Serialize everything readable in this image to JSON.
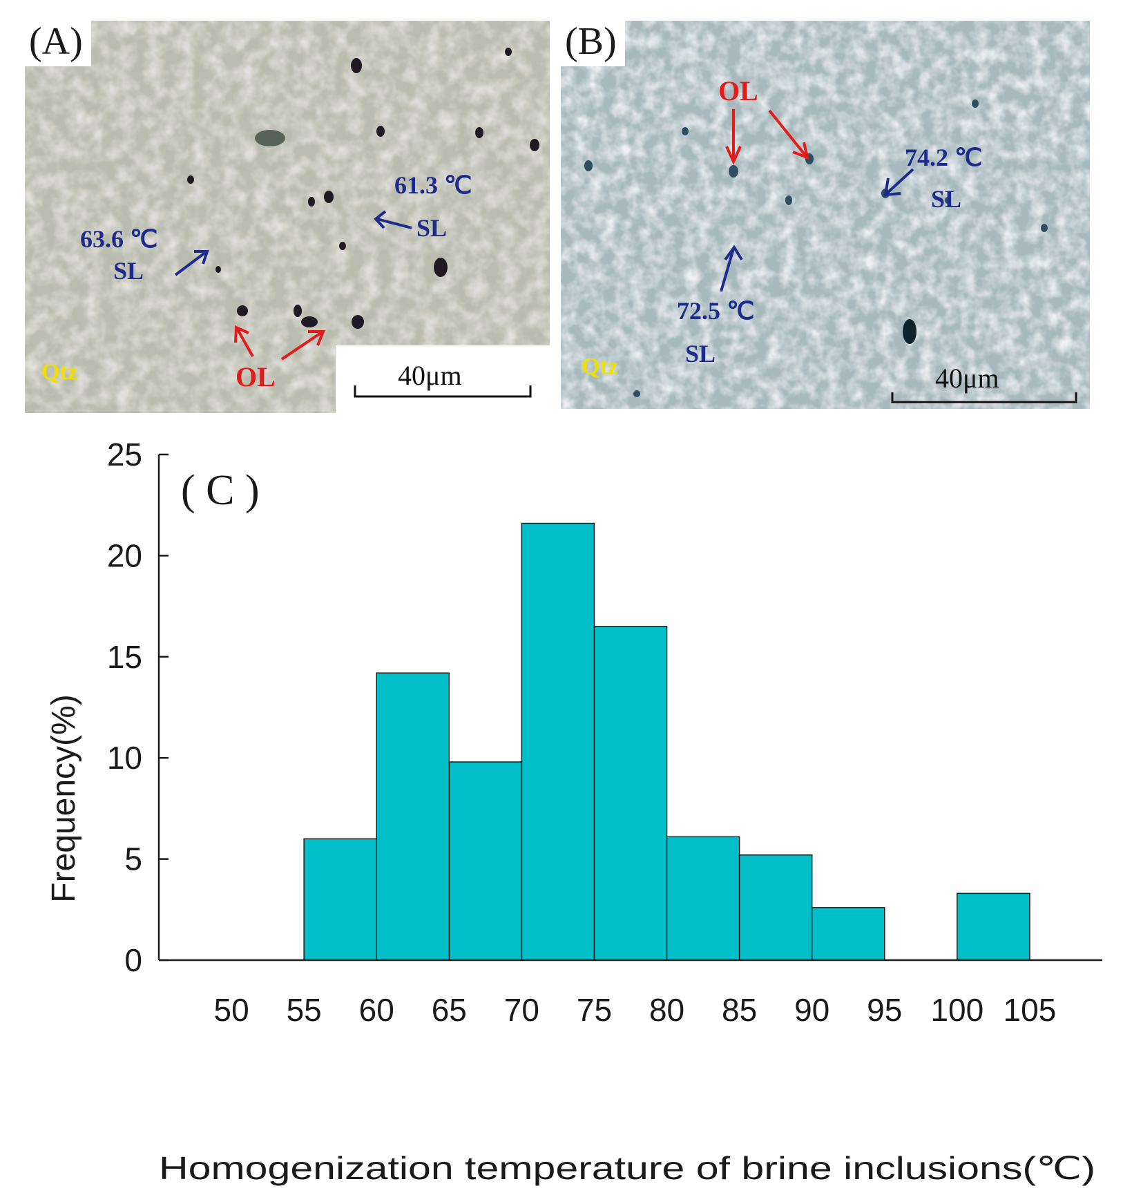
{
  "panel_a": {
    "label": "(A)",
    "annotations": {
      "temp_1": "63.6 ℃",
      "sl_1": "SL",
      "temp_2": "61.3 ℃",
      "sl_2": "SL",
      "ol": "OL",
      "mineral": "Qtz"
    },
    "scale_bar": "40μm"
  },
  "panel_b": {
    "label": "(B)",
    "annotations": {
      "ol": "OL",
      "temp_1": "74.2 ℃",
      "sl_1": "SL",
      "temp_2": "72.5 ℃",
      "sl_2": "SL",
      "mineral": "Qtz"
    },
    "scale_bar": "40μm"
  },
  "colors": {
    "bar_fill": "#00bfc9",
    "annotation_blue": "#1f2b8c",
    "annotation_red": "#e21b1b",
    "mineral_label": "#f0e000"
  },
  "chart_data": {
    "type": "bar",
    "panel_label": "( C )",
    "xlabel": "Homogenization temperature of brine inclusions(℃)",
    "ylabel": "Frequency(%)",
    "ylim": [
      0,
      25
    ],
    "yticks": [
      0,
      5,
      10,
      15,
      20,
      25
    ],
    "xlim": [
      45,
      110
    ],
    "xticks": [
      50,
      55,
      60,
      65,
      70,
      75,
      80,
      85,
      90,
      95,
      100,
      105
    ],
    "bins": [
      {
        "from": 55,
        "to": 60,
        "value": 6.0
      },
      {
        "from": 60,
        "to": 65,
        "value": 14.2
      },
      {
        "from": 65,
        "to": 70,
        "value": 9.8
      },
      {
        "from": 70,
        "to": 75,
        "value": 21.6
      },
      {
        "from": 75,
        "to": 80,
        "value": 16.5
      },
      {
        "from": 80,
        "to": 85,
        "value": 6.1
      },
      {
        "from": 85,
        "to": 90,
        "value": 5.2
      },
      {
        "from": 90,
        "to": 95,
        "value": 2.6
      },
      {
        "from": 100,
        "to": 105,
        "value": 3.3
      }
    ],
    "grid": false,
    "legend": false
  }
}
